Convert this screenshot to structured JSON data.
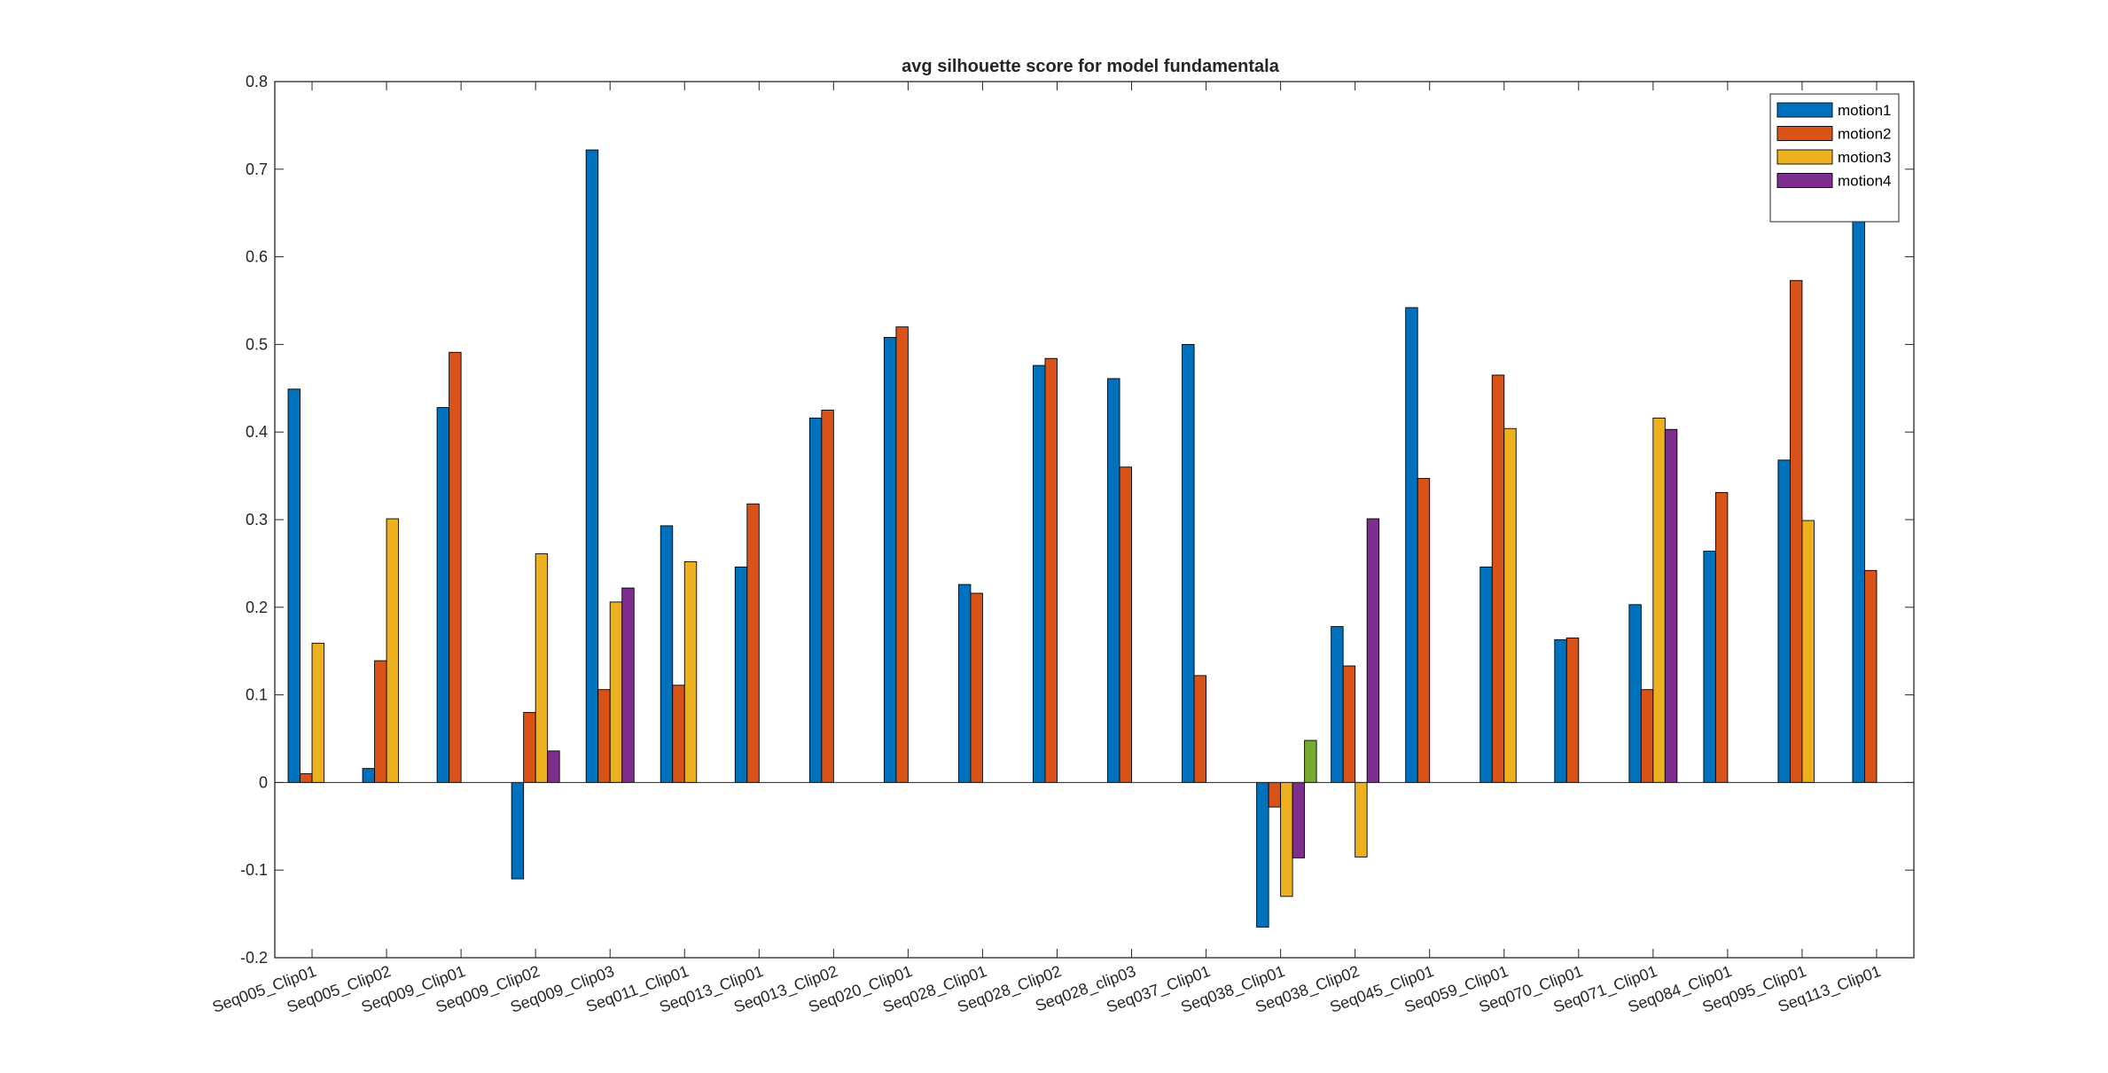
{
  "chart_data": {
    "type": "bar",
    "title": "avg silhouette score for model fundamentala",
    "xlabel": "",
    "ylabel": "",
    "ylim": [
      -0.2,
      0.8
    ],
    "yticks": [
      -0.2,
      -0.1,
      0,
      0.1,
      0.2,
      0.3,
      0.4,
      0.5,
      0.6,
      0.7,
      0.8
    ],
    "ytick_labels": [
      "-0.2",
      "-0.1",
      "0",
      "0.1",
      "0.2",
      "0.3",
      "0.4",
      "0.5",
      "0.6",
      "0.7",
      "0.8"
    ],
    "categories": [
      "Seq005_Clip01",
      "Seq005_Clip02",
      "Seq009_Clip01",
      "Seq009_Clip02",
      "Seq009_Clip03",
      "Seq011_Clip01",
      "Seq013_Clip01",
      "Seq013_Clip02",
      "Seq020_Clip01",
      "Seq028_Clip01",
      "Seq028_Clip02",
      "Seq028_clip03",
      "Seq037_Clip01",
      "Seq038_Clip01",
      "Seq038_Clip02",
      "Seq045_Clip01",
      "Seq059_Clip01",
      "Seq070_Clip01",
      "Seq071_Clip01",
      "Seq084_Clip01",
      "Seq095_Clip01",
      "Seq113_Clip01"
    ],
    "legend_position": "top-right",
    "grid": false,
    "series": [
      {
        "name": "motion1",
        "color": "#0072BD",
        "values": [
          0.449,
          0.016,
          0.428,
          -0.11,
          0.722,
          0.293,
          0.246,
          0.416,
          0.508,
          0.226,
          0.476,
          0.461,
          0.5,
          -0.165,
          0.178,
          0.542,
          0.246,
          0.163,
          0.203,
          0.264,
          0.368,
          0.65
        ]
      },
      {
        "name": "motion2",
        "color": "#D95319",
        "values": [
          0.01,
          0.139,
          0.491,
          0.08,
          0.106,
          0.111,
          0.318,
          0.425,
          0.52,
          0.216,
          0.484,
          0.36,
          0.122,
          -0.028,
          0.133,
          0.347,
          0.465,
          0.165,
          0.106,
          0.331,
          0.573,
          0.242
        ]
      },
      {
        "name": "motion3",
        "color": "#EDB120",
        "values": [
          0.159,
          0.301,
          null,
          0.261,
          0.206,
          0.252,
          null,
          null,
          null,
          null,
          null,
          null,
          null,
          -0.13,
          -0.085,
          null,
          0.404,
          null,
          0.416,
          null,
          0.299,
          null
        ]
      },
      {
        "name": "motion4",
        "color": "#7E2F8E",
        "values": [
          null,
          null,
          null,
          0.036,
          0.222,
          null,
          null,
          null,
          null,
          null,
          null,
          null,
          null,
          -0.086,
          0.301,
          null,
          null,
          null,
          0.403,
          null,
          null,
          null
        ]
      },
      {
        "name": "",
        "color": "#77AC30",
        "values": [
          null,
          null,
          null,
          null,
          null,
          null,
          null,
          null,
          null,
          null,
          null,
          null,
          null,
          0.048,
          null,
          null,
          null,
          null,
          null,
          null,
          null,
          null
        ]
      }
    ]
  }
}
